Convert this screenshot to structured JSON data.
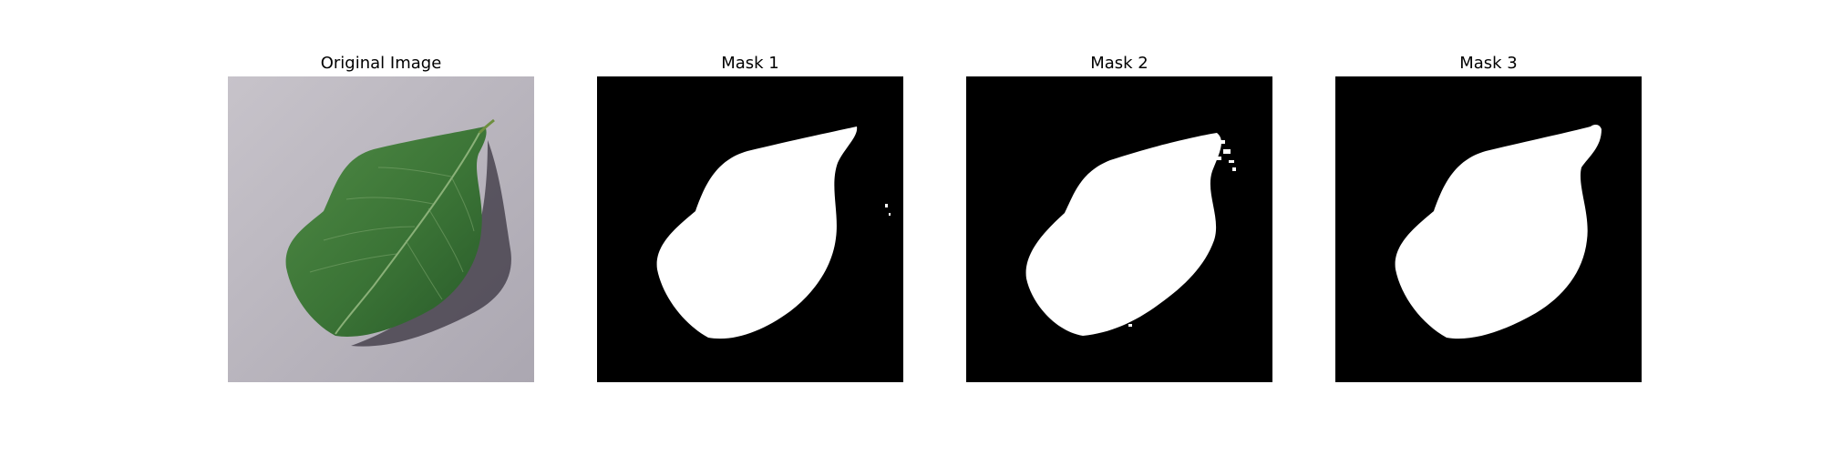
{
  "panels": [
    {
      "title": "Original Image"
    },
    {
      "title": "Mask 1"
    },
    {
      "title": "Mask 2"
    },
    {
      "title": "Mask 3"
    }
  ],
  "colors": {
    "background_surface": "#b7b3bc",
    "leaf": "#3f7a3a",
    "leaf_dark": "#244d24",
    "mask_background": "#000000",
    "mask_foreground": "#ffffff"
  }
}
